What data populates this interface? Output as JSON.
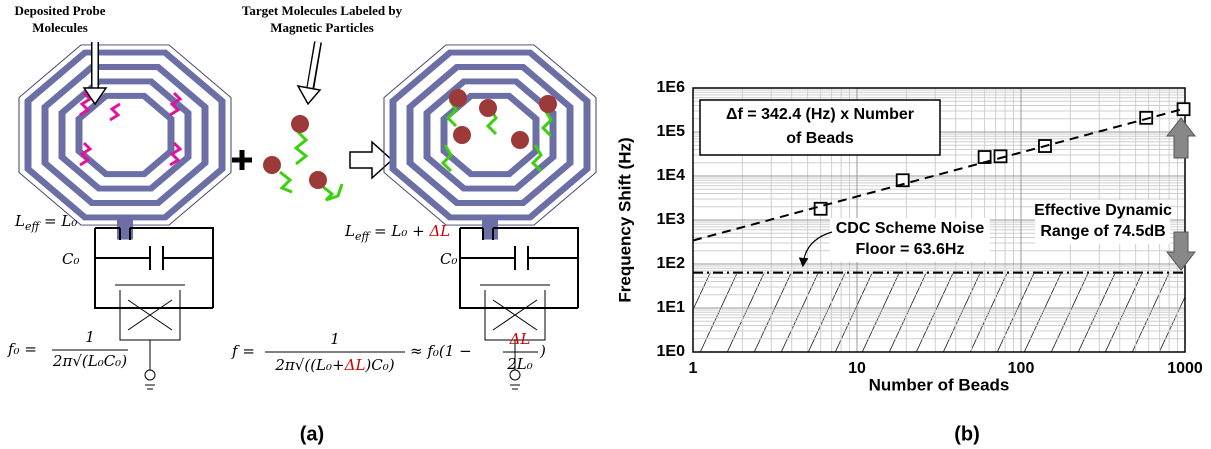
{
  "panel_a": {
    "label": "(a)",
    "probe_label": [
      "Deposited Probe",
      "Molecules"
    ],
    "target_label": [
      "Target Molecules Labeled by",
      "Magnetic Particles"
    ],
    "leff_left": [
      "L",
      "eff",
      " = L₀"
    ],
    "leff_right": [
      "L",
      "eff",
      " = L₀ + ",
      "ΔL"
    ],
    "c0": "C₀",
    "f0_formula": [
      "f₀ =",
      "1",
      "2π√(L₀C₀)"
    ],
    "f_formula": [
      "f =",
      "1",
      "2π√((L₀+",
      "ΔL",
      ")C₀)",
      "≈ f₀(1 −",
      "ΔL",
      "2L₀",
      ")"
    ]
  },
  "panel_b_label": "(b)",
  "chart_data": {
    "type": "scatter",
    "x_label": "Number of Beads",
    "y_label": "Frequency Shift (Hz)",
    "xscale": "log",
    "yscale": "log",
    "grid": true,
    "xlim": [
      1,
      1000
    ],
    "xticks": [
      1,
      10,
      100,
      1000
    ],
    "ylim": [
      1,
      1000000
    ],
    "yticks": [
      {
        "value": 1,
        "label": "1E0"
      },
      {
        "value": 10,
        "label": "1E1"
      },
      {
        "value": 100,
        "label": "1E2"
      },
      {
        "value": 1000,
        "label": "1E3"
      },
      {
        "value": 10000,
        "label": "1E4"
      },
      {
        "value": 100000,
        "label": "1E5"
      },
      {
        "value": 1000000,
        "label": "1E6"
      }
    ],
    "series": [
      {
        "color": "#000000",
        "marker": "square",
        "x": [
          6,
          19,
          60,
          75,
          140,
          580,
          980
        ],
        "values": [
          1800,
          8000,
          27000,
          28000,
          48000,
          210000,
          330000
        ]
      },
      {
        "type": "line",
        "color": "#000000",
        "dash": "dashed",
        "x": [
          1,
          1000
        ],
        "values": [
          342.4,
          342400
        ]
      },
      {
        "type": "line",
        "color": "#000000",
        "dash": "dashdot",
        "x": [
          1,
          1000
        ],
        "values": [
          63.6,
          63.6
        ]
      }
    ],
    "annotations": {
      "fit": [
        "Δf = 342.4 (Hz) x Number",
        "of Beads"
      ],
      "noise": [
        "CDC Scheme Noise",
        "Floor = 63.6Hz"
      ],
      "range": [
        "Effective Dynamic",
        "Range of 74.5dB"
      ]
    }
  }
}
